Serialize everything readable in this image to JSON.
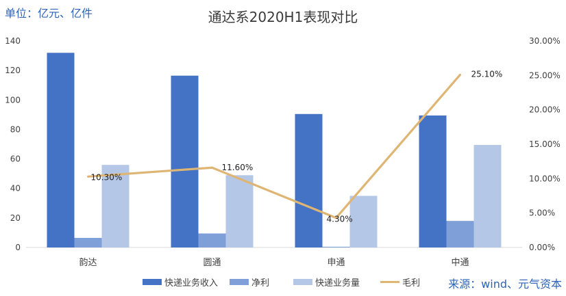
{
  "unit_note": "单位：亿元、亿件",
  "source_note": "来源：wind、元气资本",
  "colors": {
    "revenue": "#4472c4",
    "net_profit": "#7f9fd8",
    "volume": "#b4c7e7",
    "margin": "#deb573"
  },
  "chart_data": {
    "type": "bar",
    "title": "通达系2020H1表现对比",
    "categories": [
      "韵达",
      "圆通",
      "申通",
      "中通"
    ],
    "series": [
      {
        "name": "快递业务收入",
        "kind": "bar",
        "axis": "left",
        "values": [
          132,
          116.5,
          90.5,
          89.5
        ]
      },
      {
        "name": "净利",
        "kind": "bar",
        "axis": "left",
        "values": [
          6.5,
          9.5,
          0.5,
          18
        ]
      },
      {
        "name": "快递业务量",
        "kind": "bar",
        "axis": "left",
        "values": [
          56,
          49,
          35,
          69.5
        ]
      },
      {
        "name": "毛利",
        "kind": "line",
        "axis": "right",
        "values": [
          0.103,
          0.116,
          0.043,
          0.251
        ],
        "labels": [
          "10.30%",
          "11.60%",
          "4.30%",
          "25.10%"
        ]
      }
    ],
    "ylim_left": [
      0,
      140
    ],
    "yticks_left": [
      "0",
      "20",
      "40",
      "60",
      "80",
      "100",
      "120",
      "140"
    ],
    "ylim_right": [
      0,
      0.3
    ],
    "yticks_right": [
      "0.00%",
      "5.00%",
      "10.00%",
      "15.00%",
      "20.00%",
      "25.00%",
      "30.00%"
    ],
    "grid": false,
    "legend": "bottom"
  }
}
